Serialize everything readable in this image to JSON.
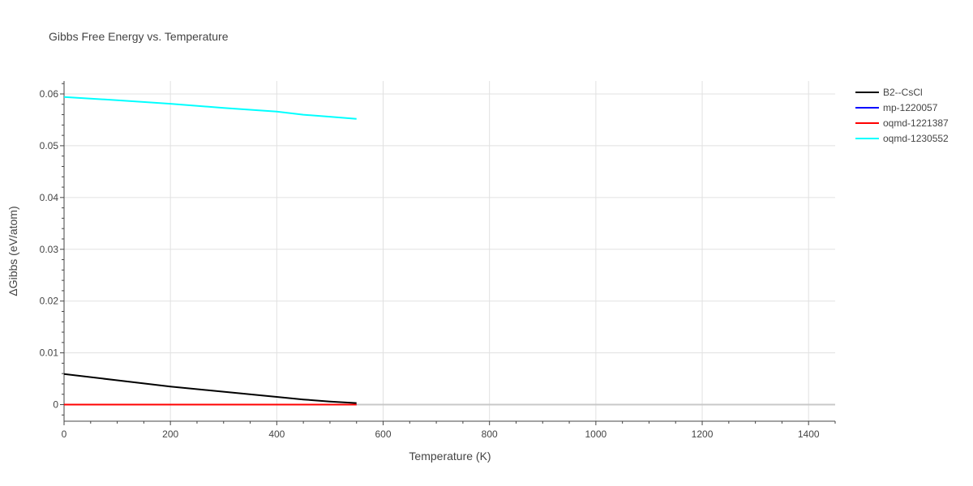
{
  "chart_data": {
    "type": "line",
    "title": "Gibbs Free Energy vs. Temperature",
    "xlabel": "Temperature (K)",
    "ylabel": "ΔGibbs (eV/atom)",
    "xlim": [
      0,
      1450
    ],
    "ylim": [
      -0.0032,
      0.0625
    ],
    "xticks": [
      0,
      200,
      400,
      600,
      800,
      1000,
      1200,
      1400
    ],
    "yticks": [
      0,
      0.01,
      0.02,
      0.03,
      0.04,
      0.05,
      0.06
    ],
    "ytick_labels": [
      "0",
      "0.01",
      "0.02",
      "0.03",
      "0.04",
      "0.05",
      "0.06"
    ],
    "grid": true,
    "legend_position": "right",
    "series": [
      {
        "name": "B2--CsCl",
        "color": "#000000",
        "x": [
          0,
          100,
          200,
          300,
          400,
          450,
          500,
          550
        ],
        "y": [
          0.0059,
          0.0047,
          0.0035,
          0.0025,
          0.0015,
          0.001,
          0.0006,
          0.0003
        ]
      },
      {
        "name": "mp-1220057",
        "color": "#0000ff",
        "x": [
          0,
          100,
          200,
          300,
          400,
          450,
          500,
          550
        ],
        "y": [
          0,
          0,
          0,
          0,
          0,
          0,
          0,
          0
        ]
      },
      {
        "name": "oqmd-1221387",
        "color": "#ff0000",
        "x": [
          0,
          100,
          200,
          300,
          400,
          450,
          500,
          550
        ],
        "y": [
          0,
          0,
          0,
          0,
          0,
          0,
          0,
          0
        ]
      },
      {
        "name": "oqmd-1230552",
        "color": "#00ffff",
        "x": [
          0,
          100,
          200,
          300,
          400,
          450,
          500,
          550
        ],
        "y": [
          0.0594,
          0.0588,
          0.0581,
          0.0573,
          0.0566,
          0.056,
          0.0556,
          0.0552
        ]
      }
    ]
  }
}
